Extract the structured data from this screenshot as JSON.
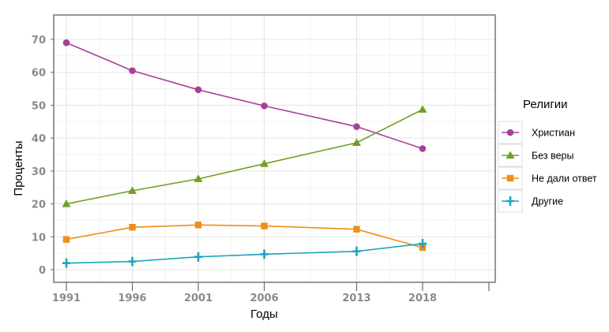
{
  "chart_data": {
    "type": "line",
    "x": [
      1991,
      1996,
      2001,
      2006,
      2013,
      2018
    ],
    "x_ticks": [
      "1991",
      "1996",
      "2001",
      "2006",
      "2013",
      "2018"
    ],
    "xlim": [
      1991,
      2023
    ],
    "ylim": [
      0,
      70
    ],
    "y_ticks": [
      0,
      10,
      20,
      30,
      40,
      50,
      60,
      70
    ],
    "xlabel": "Годы",
    "ylabel": "Проценты",
    "grid": true,
    "legend": {
      "title": "Религии",
      "position": "right"
    },
    "series": [
      {
        "name": "Христиан",
        "color": "#a6409a",
        "marker": "circle",
        "values": [
          69,
          60.5,
          54.7,
          49.8,
          43.5,
          36.8
        ]
      },
      {
        "name": "Без веры",
        "color": "#6fa023",
        "marker": "triangle",
        "values": [
          20,
          24,
          27.6,
          32.2,
          38.6,
          48.7
        ]
      },
      {
        "name": "Не дали ответ",
        "color": "#ee8f17",
        "marker": "square",
        "values": [
          9.2,
          12.9,
          13.6,
          13.3,
          12.3,
          6.7
        ]
      },
      {
        "name": "Другие",
        "color": "#1aa6be",
        "marker": "cross",
        "values": [
          2,
          2.5,
          3.9,
          4.7,
          5.6,
          7.9
        ]
      }
    ]
  }
}
